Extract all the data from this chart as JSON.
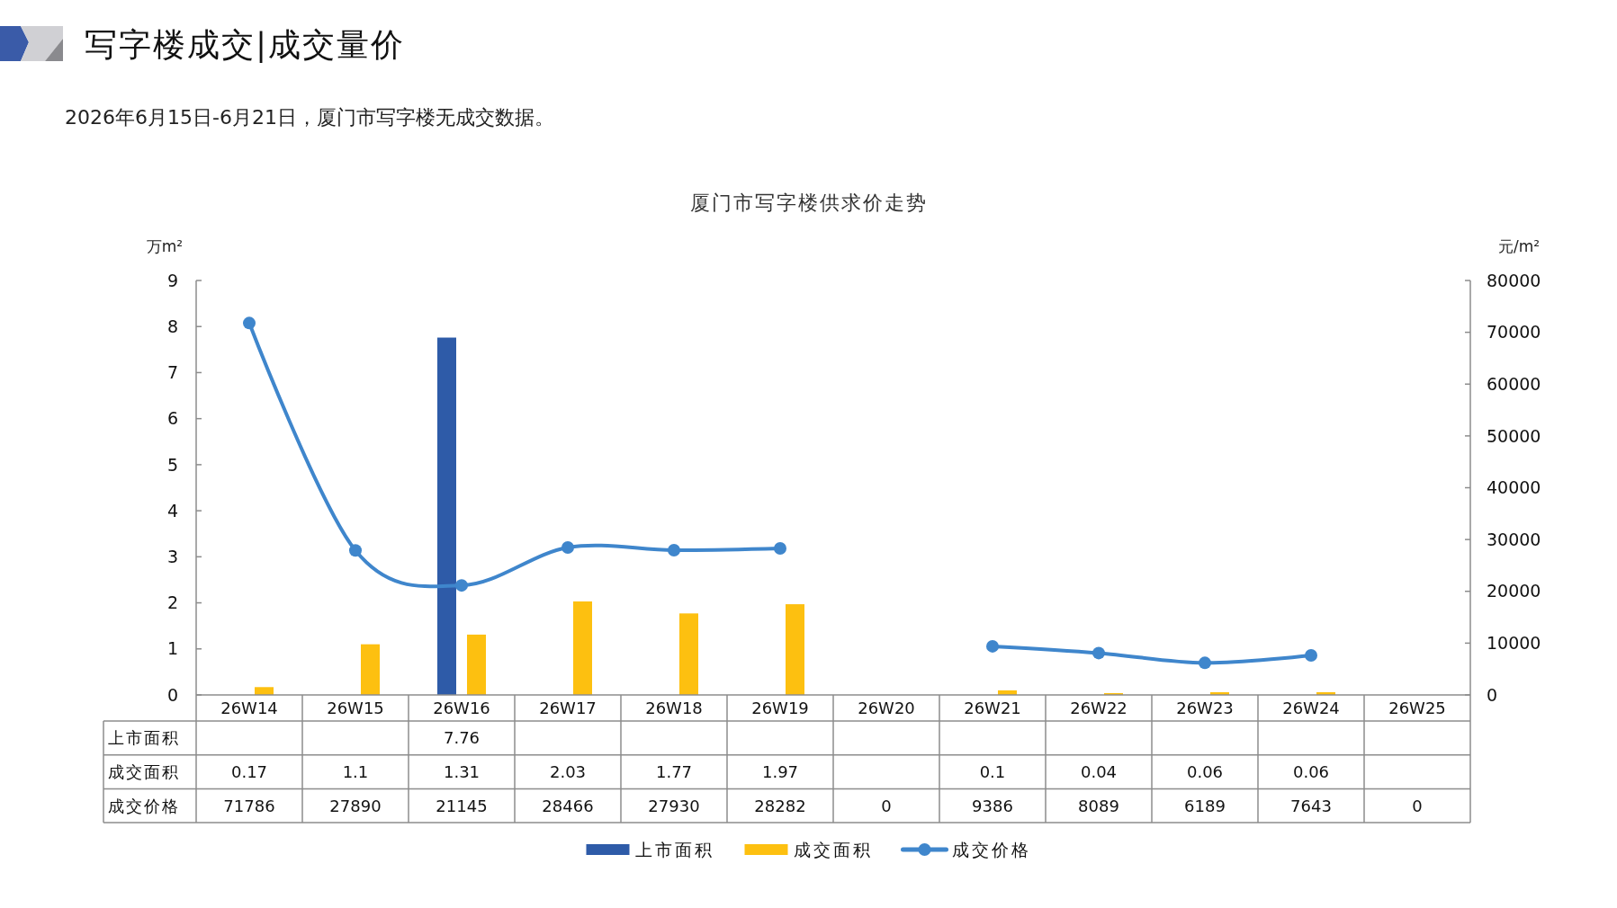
{
  "chart_data": {
    "type": "bar",
    "title": "写字楼成交|成交量价",
    "subtitle": "2026年6月15日-6月21日，厦门市写字楼无成交数据。",
    "annotations": [
      "厦门市写字楼供求价走势"
    ],
    "ylabel": "万m²",
    "y2label": "元/m²",
    "categories": [
      "26W14",
      "26W15",
      "26W16",
      "26W17",
      "26W18",
      "26W19",
      "26W20",
      "26W21",
      "26W22",
      "26W23",
      "26W24",
      "26W25"
    ],
    "ylim": [
      0,
      9
    ],
    "yticks": [
      0,
      1,
      2,
      3,
      4,
      5,
      6,
      7,
      8,
      9
    ],
    "y2lim": [
      0,
      80000
    ],
    "y2ticks": [
      0,
      10000,
      20000,
      30000,
      40000,
      50000,
      60000,
      70000,
      80000
    ],
    "legend": "bottom",
    "series": [
      {
        "name": "上市面积",
        "color": "#2e5ba8",
        "values": [
          null,
          null,
          7.76,
          null,
          null,
          null,
          null,
          null,
          null,
          null,
          null,
          null
        ],
        "value_labels": [
          null,
          null,
          "7.76",
          null,
          null,
          null,
          null,
          null,
          null,
          null,
          null,
          null
        ]
      },
      {
        "name": "成交面积",
        "color": "#fdc010",
        "values": [
          0.17,
          1.1,
          1.31,
          2.03,
          1.77,
          1.97,
          null,
          0.1,
          0.04,
          0.06,
          0.06,
          null
        ],
        "value_labels": [
          "0.17",
          "1.1",
          "1.31",
          "2.03",
          "1.77",
          "1.97",
          null,
          "0.1",
          "0.04",
          "0.06",
          "0.06",
          null
        ]
      },
      {
        "name": "成交价格",
        "type": "line",
        "axis": "y2",
        "marker": "circle",
        "color": "#3f86cc",
        "values": [
          71786,
          27890,
          21145,
          28466,
          27930,
          28282,
          null,
          9386,
          8089,
          6189,
          7643,
          null
        ],
        "value_labels": [
          "71786",
          "27890",
          "21145",
          "28466",
          "27930",
          "28282",
          "0",
          "9386",
          "8089",
          "6189",
          "7643",
          "0"
        ]
      }
    ]
  }
}
